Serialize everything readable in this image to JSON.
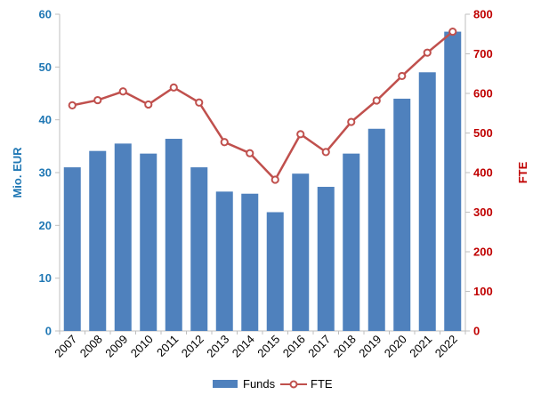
{
  "chart_data": {
    "type": "bar",
    "categories": [
      "2007",
      "2008",
      "2009",
      "2010",
      "2011",
      "2012",
      "2013",
      "2014",
      "2015",
      "2016",
      "2017",
      "2018",
      "2019",
      "2020",
      "2021",
      "2022"
    ],
    "series": [
      {
        "name": "Funds",
        "type": "bar",
        "axis": "left",
        "values": [
          31.0,
          34.1,
          35.5,
          33.6,
          36.4,
          31.0,
          26.4,
          26.0,
          22.5,
          29.8,
          27.3,
          33.6,
          38.3,
          44.0,
          49.0,
          56.7
        ],
        "color": "#4f81bd"
      },
      {
        "name": "FTE",
        "type": "line",
        "axis": "right",
        "values": [
          570,
          583,
          605,
          572,
          615,
          577,
          477,
          449,
          382,
          497,
          452,
          528,
          582,
          644,
          703,
          756
        ],
        "color": "#c0504d"
      }
    ],
    "ylabel_left": "Mio. EUR",
    "ylabel_right": "FTE",
    "ylim_left": [
      0,
      60
    ],
    "ylim_right": [
      0,
      800
    ],
    "yticks_left": [
      "0",
      "10",
      "20",
      "30",
      "40",
      "50",
      "60"
    ],
    "yticks_right": [
      "0",
      "100",
      "200",
      "300",
      "400",
      "500",
      "600",
      "700",
      "800"
    ],
    "left_axis_color": "#1f77b4",
    "right_axis_color": "#c00000",
    "grid": false,
    "legend": {
      "position": "bottom",
      "entries": [
        "Funds",
        "FTE"
      ]
    }
  }
}
